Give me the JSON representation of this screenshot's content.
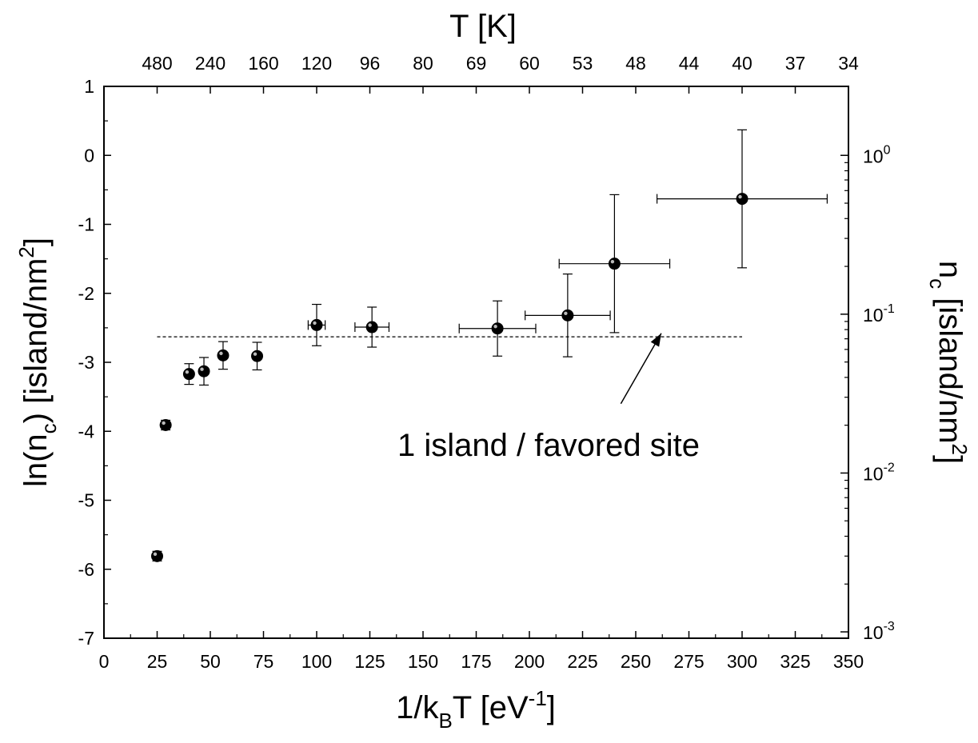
{
  "chart_data": {
    "type": "scatter",
    "x_axis": {
      "label_parts": [
        "1/k",
        "B",
        "T [eV",
        "-1",
        "]"
      ],
      "range": [
        0,
        350
      ],
      "ticks": [
        0,
        25,
        50,
        75,
        100,
        125,
        150,
        175,
        200,
        225,
        250,
        275,
        300,
        325,
        350
      ],
      "tick_labels": [
        "0",
        "25",
        "50",
        "75",
        "100",
        "125",
        "150",
        "175",
        "200",
        "225",
        "250",
        "275",
        "300",
        "325",
        "350"
      ]
    },
    "y_axis": {
      "label_parts": [
        "ln(n",
        "c",
        ") [island/nm",
        "2",
        "]"
      ],
      "range": [
        -7,
        1
      ],
      "ticks": [
        -7,
        -6,
        -5,
        -4,
        -3,
        -2,
        -1,
        0,
        1
      ],
      "tick_labels": [
        "-7",
        "-6",
        "-5",
        "-4",
        "-3",
        "-2",
        "-1",
        "0",
        "1"
      ]
    },
    "top_axis": {
      "label": "T [K]",
      "scale": "reciprocal",
      "tick_labels": [
        "480",
        "240",
        "160",
        "120",
        "96",
        "80",
        "69",
        "60",
        "53",
        "48",
        "44",
        "40",
        "37",
        "34"
      ]
    },
    "right_axis": {
      "label_parts": [
        "n",
        "c",
        " [island/nm",
        "2",
        "]"
      ],
      "scale": "log",
      "tick_bases": [
        "10",
        "10",
        "10",
        "10"
      ],
      "tick_exponents": [
        "-3",
        "-2",
        "-1",
        "0"
      ]
    },
    "points": [
      {
        "x": 25,
        "y": -5.81,
        "xerr": 0,
        "yerr": 0.07
      },
      {
        "x": 29,
        "y": -3.91,
        "xerr": 0,
        "yerr": 0.07
      },
      {
        "x": 40,
        "y": -3.17,
        "xerr": 0,
        "yerr": 0.15
      },
      {
        "x": 47,
        "y": -3.13,
        "xerr": 0,
        "yerr": 0.2
      },
      {
        "x": 56,
        "y": -2.9,
        "xerr": 0,
        "yerr": 0.2
      },
      {
        "x": 72,
        "y": -2.91,
        "xerr": 0,
        "yerr": 0.2
      },
      {
        "x": 100,
        "y": -2.46,
        "xerr": 4,
        "yerr": 0.3
      },
      {
        "x": 126,
        "y": -2.49,
        "xerr": 8,
        "yerr": 0.29
      },
      {
        "x": 185,
        "y": -2.51,
        "xerr": 18,
        "yerr": 0.4
      },
      {
        "x": 218,
        "y": -2.32,
        "xerr": 20,
        "yerr": 0.6
      },
      {
        "x": 240,
        "y": -1.57,
        "xerr": 26,
        "yerr": 1.0
      },
      {
        "x": 300,
        "y": -0.63,
        "xerr": 40,
        "yerr": 1.0
      }
    ],
    "reference_line": {
      "y": -2.63,
      "x_start": 25,
      "x_end": 300,
      "style": "dashed"
    },
    "annotation": {
      "text": "1 island / favored site",
      "arrow_from": [
        243,
        -3.6
      ],
      "arrow_to": [
        262,
        -2.58
      ]
    }
  }
}
